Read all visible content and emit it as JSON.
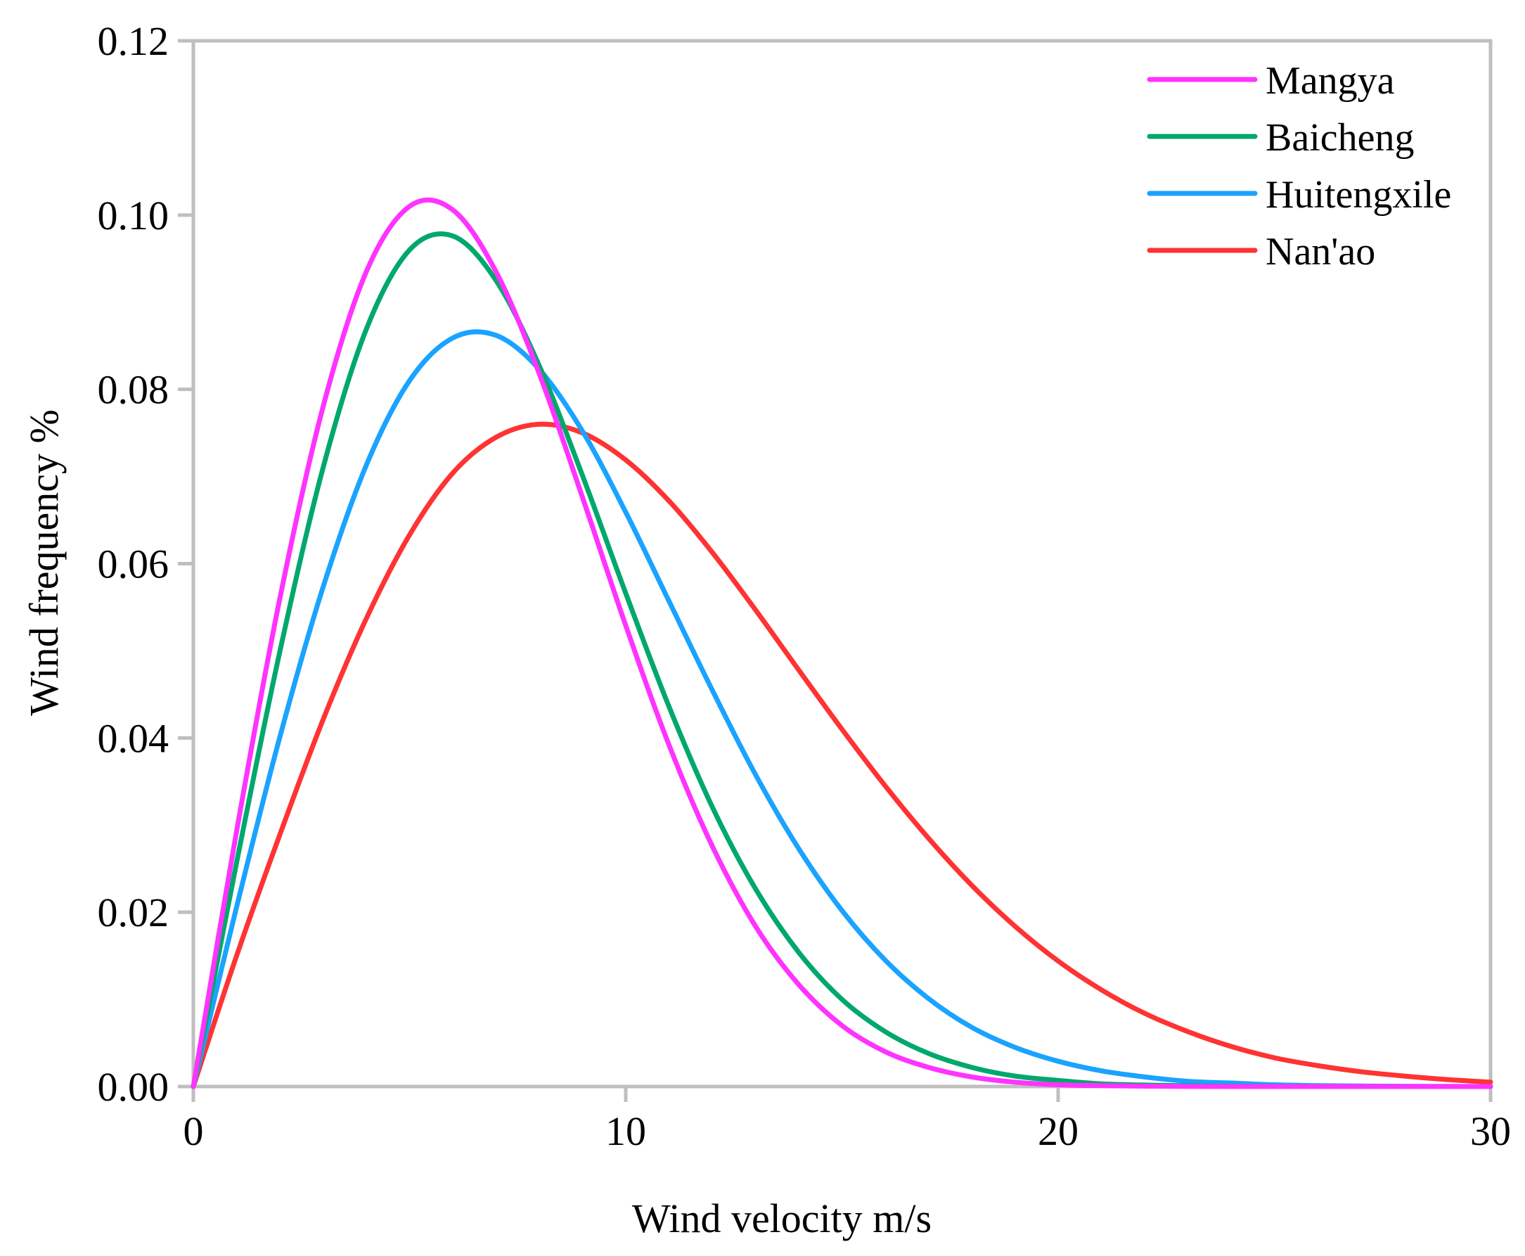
{
  "chart_data": {
    "type": "line",
    "title": "",
    "xlabel": "Wind velocity  m/s",
    "ylabel": "Wind frequency %",
    "xlim": [
      0,
      30
    ],
    "ylim": [
      0,
      0.12
    ],
    "xticks": [
      "0",
      "10",
      "20",
      "30"
    ],
    "yticks": [
      "0.00",
      "0.02",
      "0.04",
      "0.06",
      "0.08",
      "0.10",
      "0.12"
    ],
    "grid": false,
    "legend_position": "top-right",
    "x": [
      0,
      1,
      2,
      3,
      4,
      5,
      6,
      7,
      8,
      9,
      10,
      11,
      12,
      13,
      14,
      15,
      16,
      17,
      18,
      19,
      20,
      21,
      22,
      23,
      24,
      25,
      26,
      27,
      28,
      29,
      30
    ],
    "series": [
      {
        "name": "Mangya",
        "color": "#ff33ff",
        "values": [
          0,
          0.0293,
          0.056,
          0.078,
          0.0935,
          0.101,
          0.1006,
          0.0935,
          0.0818,
          0.0676,
          0.0529,
          0.0392,
          0.0276,
          0.0184,
          0.0117,
          0.007,
          0.004,
          0.0022,
          0.0011,
          0.0005,
          0.0002,
          0.0001,
          4e-05,
          1e-05,
          0,
          0,
          0,
          0,
          0,
          0,
          0
        ]
      },
      {
        "name": "Baicheng",
        "color": "#00a86b",
        "values": [
          0,
          0.0257,
          0.0499,
          0.071,
          0.0869,
          0.096,
          0.0976,
          0.0925,
          0.0827,
          0.0701,
          0.0566,
          0.0436,
          0.0321,
          0.0227,
          0.0154,
          0.01,
          0.0063,
          0.0038,
          0.0022,
          0.0012,
          0.0007,
          0.0003,
          0.00017,
          8e-05,
          4e-05,
          2e-05,
          0,
          0,
          0,
          0,
          0
        ]
      },
      {
        "name": "Huitengxile",
        "color": "#1aa3ff",
        "values": [
          0,
          0.0206,
          0.0401,
          0.0573,
          0.0713,
          0.081,
          0.0859,
          0.0862,
          0.0823,
          0.0752,
          0.0659,
          0.0557,
          0.0455,
          0.0358,
          0.0273,
          0.0202,
          0.0145,
          0.0101,
          0.0068,
          0.0045,
          0.0029,
          0.0018,
          0.0011,
          0.0006,
          0.0004,
          0.0002,
          0.0001,
          6e-05,
          3e-05,
          2e-05,
          0
        ]
      },
      {
        "name": "Nan'ao",
        "color": "#ff3333",
        "values": [
          0,
          0.015,
          0.0289,
          0.0421,
          0.0537,
          0.0633,
          0.0704,
          0.0745,
          0.076,
          0.075,
          0.0719,
          0.0672,
          0.0613,
          0.0547,
          0.0478,
          0.041,
          0.0345,
          0.0285,
          0.0231,
          0.0184,
          0.0144,
          0.0111,
          0.0084,
          0.0063,
          0.0046,
          0.0033,
          0.0024,
          0.0017,
          0.0012,
          0.0008,
          0.0005
        ]
      }
    ]
  }
}
